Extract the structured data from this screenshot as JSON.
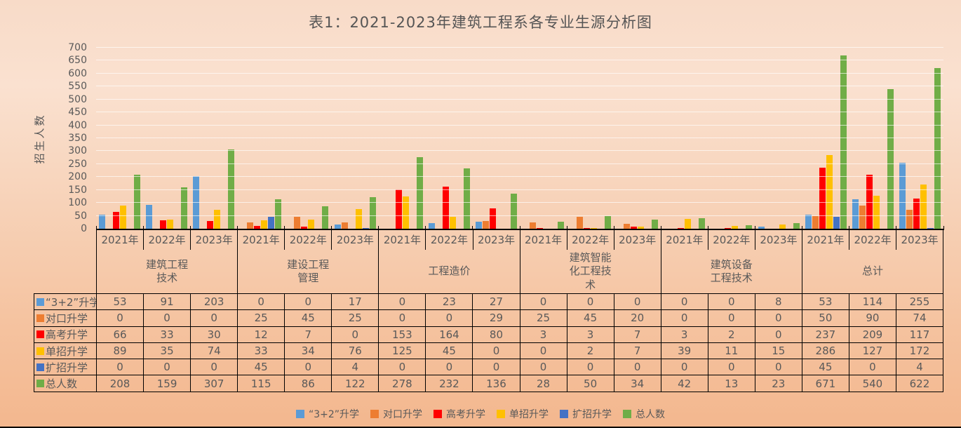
{
  "chart_data": {
    "type": "bar",
    "title": "表1：2021-2023年建筑工程系各专业生源分析图",
    "ylabel": "招生人数",
    "ylim": [
      0,
      700
    ],
    "ytick_step": 50,
    "grid": true,
    "legend_position": "bottom",
    "groups": [
      "建筑工程技术",
      "建设工程管理",
      "工程造价",
      "建筑智能化工程技术",
      "建筑设备工程技术",
      "总计"
    ],
    "years": [
      "2021年",
      "2022年",
      "2023年"
    ],
    "series": [
      {
        "name": "“3+2”升学",
        "color": "#5B9BD5",
        "values": [
          53,
          91,
          203,
          0,
          0,
          17,
          0,
          23,
          27,
          0,
          0,
          0,
          0,
          0,
          8,
          53,
          114,
          255
        ]
      },
      {
        "name": "对口升学",
        "color": "#ED7D31",
        "values": [
          0,
          0,
          0,
          25,
          45,
          25,
          0,
          0,
          29,
          25,
          45,
          20,
          0,
          0,
          0,
          50,
          90,
          74
        ]
      },
      {
        "name": "高考升学",
        "color": "#FF0000",
        "values": [
          66,
          33,
          30,
          12,
          7,
          0,
          153,
          164,
          80,
          3,
          3,
          7,
          3,
          2,
          0,
          237,
          209,
          117
        ]
      },
      {
        "name": "单招升学",
        "color": "#FFC000",
        "values": [
          89,
          35,
          74,
          33,
          34,
          76,
          125,
          45,
          0,
          0,
          2,
          7,
          39,
          11,
          15,
          286,
          127,
          172
        ]
      },
      {
        "name": "扩招升学",
        "color": "#4472C4",
        "values": [
          0,
          0,
          0,
          45,
          0,
          4,
          0,
          0,
          0,
          0,
          0,
          0,
          0,
          0,
          0,
          45,
          0,
          4
        ]
      },
      {
        "name": "总人数",
        "color": "#70AD47",
        "values": [
          208,
          159,
          307,
          115,
          86,
          122,
          278,
          232,
          136,
          28,
          50,
          34,
          42,
          13,
          23,
          671,
          540,
          622
        ]
      }
    ]
  }
}
